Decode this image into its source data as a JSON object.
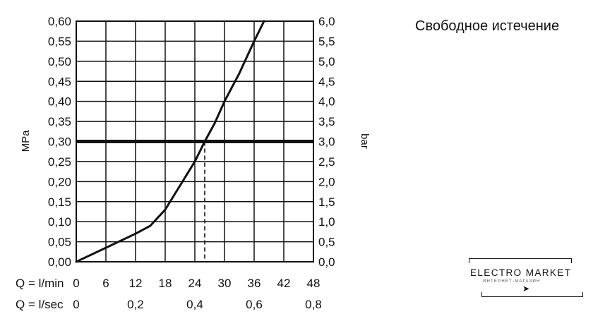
{
  "title": "Свободное истечение",
  "chart_data": {
    "type": "line",
    "ylabel_left": "MPa",
    "ylabel_right": "bar",
    "x_row_labels": [
      "Q = l/min",
      "Q = l/sec"
    ],
    "x_ticks_lmin": [
      "0",
      "6",
      "12",
      "18",
      "24",
      "30",
      "36",
      "42",
      "48"
    ],
    "x_ticks_lsec": [
      {
        "label": "0",
        "at_lmin": 0
      },
      {
        "label": "0,2",
        "at_lmin": 12
      },
      {
        "label": "0,4",
        "at_lmin": 24
      },
      {
        "label": "0,6",
        "at_lmin": 36
      },
      {
        "label": "0,8",
        "at_lmin": 48
      }
    ],
    "y_ticks_mpa": [
      "0,00",
      "0,05",
      "0,10",
      "0,15",
      "0,20",
      "0,25",
      "0,30",
      "0,35",
      "0,40",
      "0,45",
      "0,50",
      "0,55",
      "0,60"
    ],
    "y_ticks_bar": [
      "0,0",
      "0,5",
      "1,0",
      "1,5",
      "2,0",
      "2,5",
      "3,0",
      "3,5",
      "4,0",
      "4,5",
      "5,0",
      "5,5",
      "6,0"
    ],
    "xlim": [
      0,
      48
    ],
    "ylim": [
      0,
      0.6
    ],
    "grid": true,
    "reference_pressure": 0.3,
    "operating_flow": 26,
    "series": [
      {
        "x": [
          0,
          6,
          12,
          15,
          18,
          20,
          22,
          24,
          26,
          28,
          30,
          33,
          36,
          38
        ],
        "y": [
          0,
          0.035,
          0.07,
          0.09,
          0.13,
          0.17,
          0.21,
          0.25,
          0.3,
          0.345,
          0.4,
          0.47,
          0.55,
          0.6
        ]
      }
    ]
  },
  "logo": {
    "main": "ELECTRO MARKET",
    "sub": "ИНТЕРНЕТ-МАГАЗИН",
    "cursor": "➤"
  }
}
